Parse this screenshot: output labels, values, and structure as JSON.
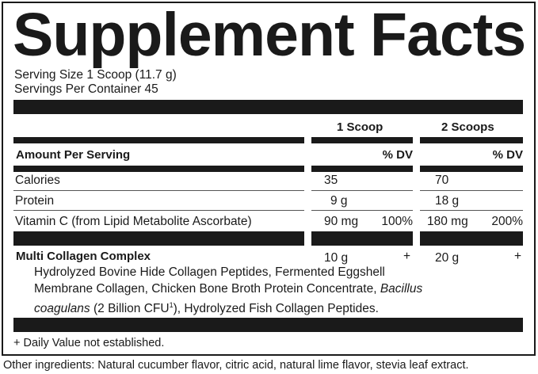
{
  "title": "Supplement Facts",
  "serving_size": "Serving Size 1 Scoop (11.7 g)",
  "servings_per_container": "Servings Per Container 45",
  "columns": {
    "col1": "1 Scoop",
    "col2": "2 Scoops"
  },
  "amount_per_serving": "Amount Per Serving",
  "dv_label": "% DV",
  "rows": [
    {
      "name": "Calories",
      "amt1": "35",
      "dv1": "",
      "amt2": "70",
      "dv2": ""
    },
    {
      "name": "Protein",
      "amt1": "9 g",
      "dv1": "",
      "amt2": "18 g",
      "dv2": ""
    },
    {
      "name": "Vitamin C (from Lipid Metabolite Ascorbate)",
      "amt1": "90 mg",
      "dv1": "100%",
      "amt2": "180 mg",
      "dv2": "200%"
    }
  ],
  "blend": {
    "name": "Multi Collagen Complex",
    "amt1": "10 g",
    "dv1": "+",
    "amt2": "20 g",
    "dv2": "+",
    "line1": "Hydrolyzed Bovine Hide Collagen Peptides, Fermented Eggshell",
    "line2a": "Membrane Collagen, Chicken Bone Broth Protein Concentrate, ",
    "line2b": "Bacillus",
    "line3a": "coagulans",
    "line3b": " (2 Billion CFU",
    "line3c": "1",
    "line3d": "), Hydrolyzed Fish Collagen Peptides."
  },
  "footnote": "+ Daily Value not established.",
  "other_ingredients": "Other ingredients: Natural cucumber flavor, citric acid, natural lime flavor, stevia leaf extract."
}
